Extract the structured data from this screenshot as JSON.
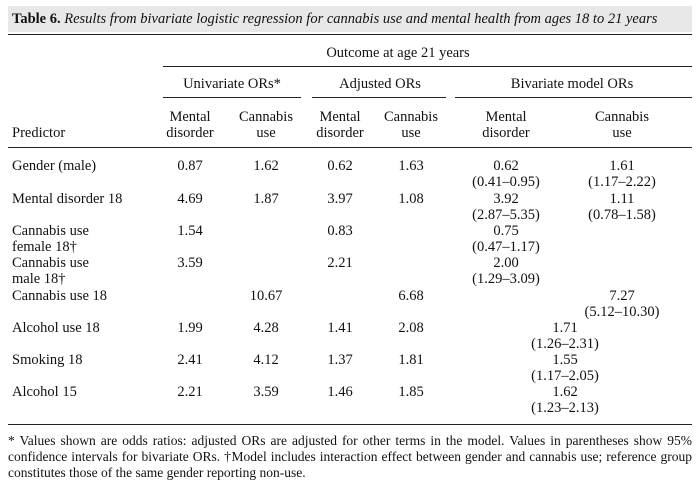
{
  "title": {
    "label": "Table 6.",
    "text": "Results from bivariate logistic regression for cannabis use and mental health from ages 18 to 21 years"
  },
  "headers": {
    "outcome": "Outcome at age 21 years",
    "groups": [
      "Univariate ORs*",
      "Adjusted ORs",
      "Bivariate model ORs"
    ],
    "predictor": "Predictor",
    "col_line1": [
      "Mental",
      "Cannabis",
      "Mental",
      "Cannabis",
      "Mental",
      "Cannabis"
    ],
    "col_line2": [
      "disorder",
      "use",
      "disorder",
      "use",
      "disorder",
      "use"
    ]
  },
  "rows": [
    {
      "pred1": "Gender (male)",
      "pred2": "",
      "uni_m": "0.87",
      "uni_c": "1.62",
      "adj_m": "0.62",
      "adj_c": "1.63",
      "biv_m": "0.62",
      "biv_m_ci": "(0.41–0.95)",
      "biv_c": "1.61",
      "biv_c_ci": "(1.17–2.22)",
      "biv_shared": "",
      "biv_shared_ci": ""
    },
    {
      "pred1": "Mental disorder 18",
      "pred2": "",
      "uni_m": "4.69",
      "uni_c": "1.87",
      "adj_m": "3.97",
      "adj_c": "1.08",
      "biv_m": "3.92",
      "biv_m_ci": "(2.87–5.35)",
      "biv_c": "1.11",
      "biv_c_ci": "(0.78–1.58)",
      "biv_shared": "",
      "biv_shared_ci": ""
    },
    {
      "pred1": "Cannabis use",
      "pred2": "female 18†",
      "uni_m": "1.54",
      "uni_c": "",
      "adj_m": "0.83",
      "adj_c": "",
      "biv_m": "0.75",
      "biv_m_ci": "(0.47–1.17)",
      "biv_c": "",
      "biv_c_ci": "",
      "biv_shared": "",
      "biv_shared_ci": ""
    },
    {
      "pred1": "Cannabis use",
      "pred2": "male 18†",
      "uni_m": "3.59",
      "uni_c": "",
      "adj_m": "2.21",
      "adj_c": "",
      "biv_m": "2.00",
      "biv_m_ci": "(1.29–3.09)",
      "biv_c": "",
      "biv_c_ci": "",
      "biv_shared": "",
      "biv_shared_ci": ""
    },
    {
      "pred1": "Cannabis use 18",
      "pred2": "",
      "uni_m": "",
      "uni_c": "10.67",
      "adj_m": "",
      "adj_c": "6.68",
      "biv_m": "",
      "biv_m_ci": "",
      "biv_c": "7.27",
      "biv_c_ci": "(5.12–10.30)",
      "biv_shared": "",
      "biv_shared_ci": ""
    },
    {
      "pred1": "Alcohol use 18",
      "pred2": "",
      "uni_m": "1.99",
      "uni_c": "4.28",
      "adj_m": "1.41",
      "adj_c": "2.08",
      "biv_m": "",
      "biv_m_ci": "",
      "biv_c": "",
      "biv_c_ci": "",
      "biv_shared": "1.71",
      "biv_shared_ci": "(1.26–2.31)"
    },
    {
      "pred1": "Smoking 18",
      "pred2": "",
      "uni_m": "2.41",
      "uni_c": "4.12",
      "adj_m": "1.37",
      "adj_c": "1.81",
      "biv_m": "",
      "biv_m_ci": "",
      "biv_c": "",
      "biv_c_ci": "",
      "biv_shared": "1.55",
      "biv_shared_ci": "(1.17–2.05)"
    },
    {
      "pred1": "Alcohol 15",
      "pred2": "",
      "uni_m": "2.21",
      "uni_c": "3.59",
      "adj_m": "1.46",
      "adj_c": "1.85",
      "biv_m": "",
      "biv_m_ci": "",
      "biv_c": "",
      "biv_c_ci": "",
      "biv_shared": "1.62",
      "biv_shared_ci": "(1.23–2.13)"
    }
  ],
  "footnote": "* Values shown are odds ratios: adjusted ORs are adjusted for other terms in the model. Values in parentheses show 95% confidence intervals for bivariate ORs. †Model includes interaction effect between gender and cannabis use; reference group constitutes those of the same gender reporting non-use."
}
